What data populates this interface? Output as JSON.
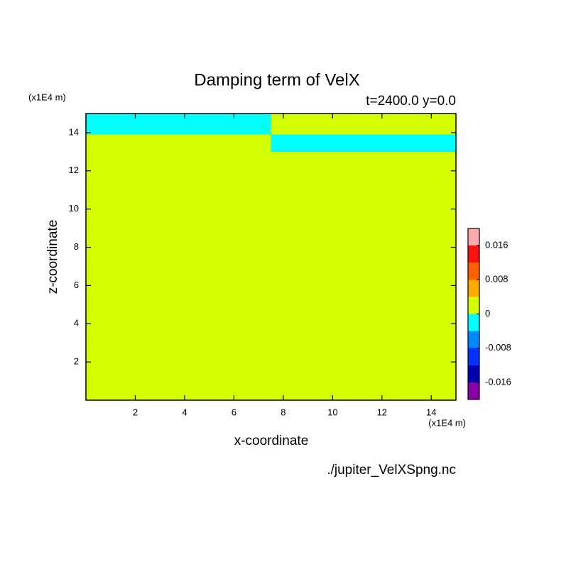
{
  "chart_data": {
    "type": "contour",
    "title": "Damping term of VelX",
    "subtitle": "t=2400.0 y=0.0",
    "x_label": "x-coordinate",
    "y_label": "z-coordinate",
    "x_unit": "(x1E4 m)",
    "y_unit": "(x1E4 m)",
    "source": "./jupiter_VelXSpng.nc",
    "xlim": [
      0,
      15
    ],
    "ylim": [
      0,
      15
    ],
    "xticks": [
      2,
      4,
      6,
      8,
      10,
      12,
      14
    ],
    "yticks": [
      2,
      4,
      6,
      8,
      10,
      12,
      14
    ],
    "regions": [
      {
        "x": [
          0,
          7.5
        ],
        "z": [
          0,
          13.9
        ],
        "value": 0.001
      },
      {
        "x": [
          0,
          7.5
        ],
        "z": [
          13.9,
          15
        ],
        "value": -0.002
      },
      {
        "x": [
          7.5,
          15
        ],
        "z": [
          0,
          13.0
        ],
        "value": 0.001
      },
      {
        "x": [
          7.5,
          15
        ],
        "z": [
          13.0,
          13.9
        ],
        "value": -0.002
      },
      {
        "x": [
          7.5,
          15
        ],
        "z": [
          13.9,
          15
        ],
        "value": 0.001
      }
    ],
    "levels": [
      -0.02,
      -0.016,
      -0.012,
      -0.008,
      -0.004,
      0,
      0.004,
      0.008,
      0.012,
      0.016,
      0.02
    ],
    "colors": [
      "#8800aa",
      "#0000b0",
      "#0033ff",
      "#0088ff",
      "#00ffff",
      "#d4ff00",
      "#ffaa00",
      "#ff6000",
      "#ff1010",
      "#ffaaaa"
    ],
    "colorbar_ticks": [
      -0.016,
      -0.008,
      0,
      0.008,
      0.016
    ]
  }
}
